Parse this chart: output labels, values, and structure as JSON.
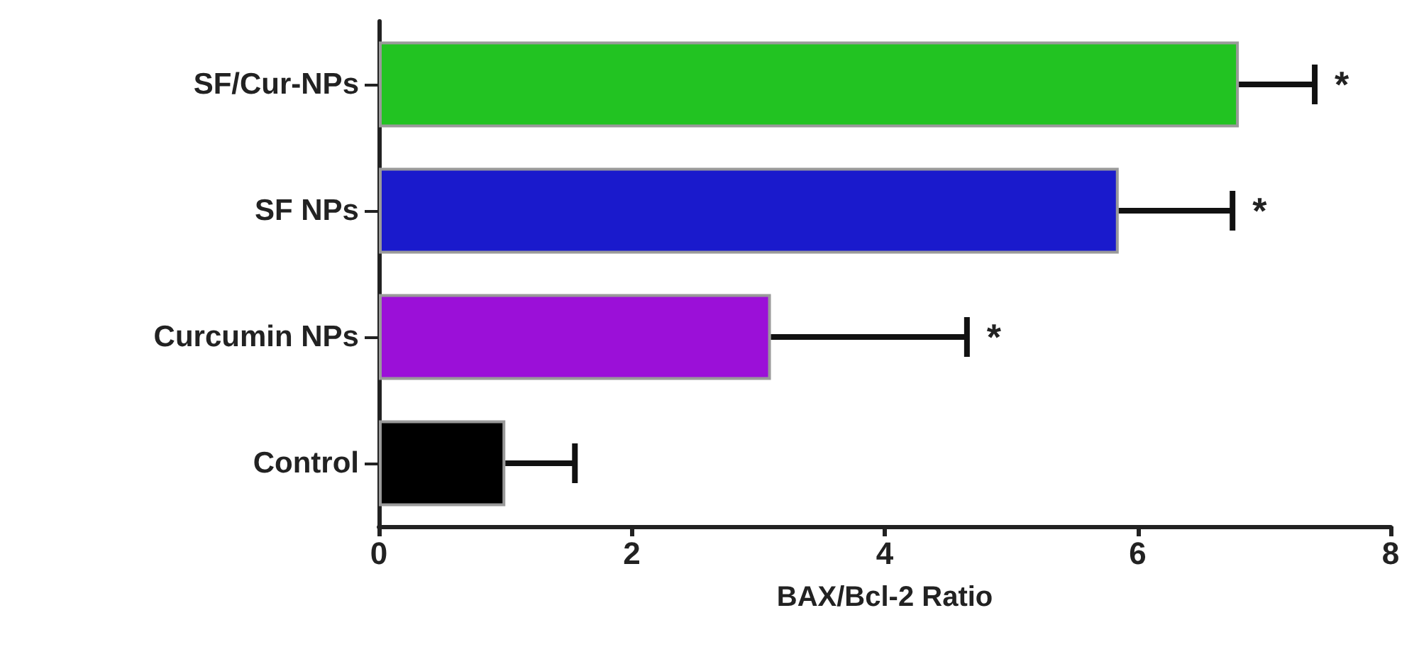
{
  "chart_data": {
    "type": "bar",
    "orientation": "horizontal",
    "xlabel": "BAX/Bcl-2 Ratio",
    "categories": [
      "SF/Cur-NPs",
      "SF NPs",
      "Curcumin NPs",
      "Control"
    ],
    "values": [
      6.8,
      5.85,
      3.1,
      1.0
    ],
    "colors": [
      "#22c322",
      "#1a1acc",
      "#9b10d8",
      "#000000"
    ],
    "errors": [
      [
        6.8,
        7.4
      ],
      [
        5.85,
        6.75
      ],
      [
        3.1,
        4.65
      ],
      [
        1.0,
        1.55
      ]
    ],
    "xlim": [
      0,
      8
    ],
    "xticks": [
      0,
      2,
      4,
      6,
      8
    ],
    "grid": false,
    "annotations": [
      {
        "text": "*",
        "x": 7.4,
        "y": "SF/Cur-NPs"
      },
      {
        "text": "*",
        "x": 6.75,
        "y": "SF NPs"
      },
      {
        "text": "*",
        "x": 4.65,
        "y": "Curcumin NPs"
      }
    ]
  }
}
